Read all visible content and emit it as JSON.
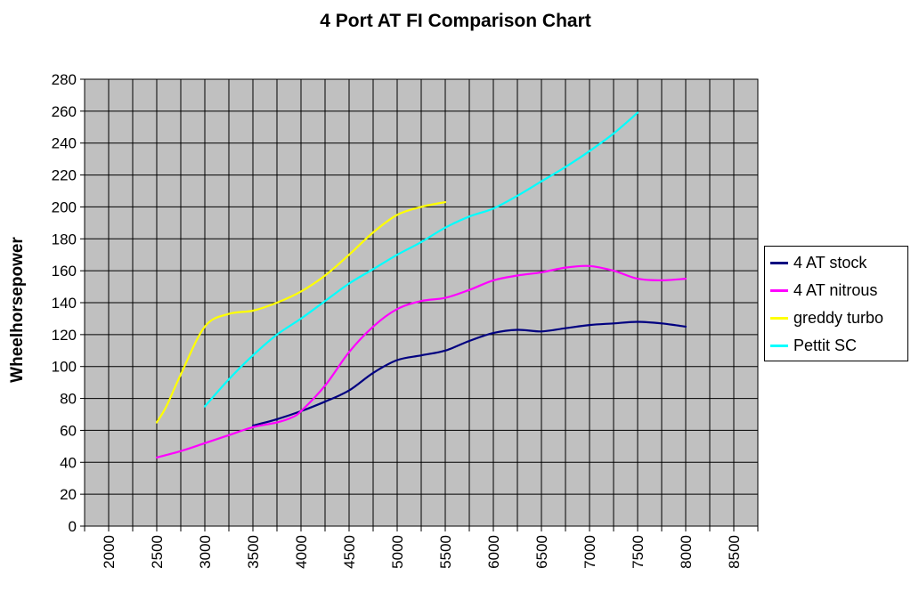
{
  "chart_data": {
    "type": "line",
    "title": "4 Port AT FI Comparison Chart",
    "xlabel": "",
    "ylabel": "Wheelhorsepower",
    "xlim": [
      1750,
      8750
    ],
    "ylim": [
      0,
      280
    ],
    "x_ticks": [
      2000,
      2500,
      3000,
      3500,
      4000,
      4500,
      5000,
      5500,
      6000,
      6500,
      7000,
      7500,
      8000,
      8500
    ],
    "y_ticks": [
      0,
      20,
      40,
      60,
      80,
      100,
      120,
      140,
      160,
      180,
      200,
      220,
      240,
      260,
      280
    ],
    "grid": true,
    "legend_position": "right",
    "series": [
      {
        "name": "4 AT stock",
        "color": "#000080",
        "points": [
          [
            3500,
            63
          ],
          [
            3750,
            67
          ],
          [
            4000,
            72
          ],
          [
            4250,
            78
          ],
          [
            4500,
            85
          ],
          [
            4750,
            96
          ],
          [
            5000,
            104
          ],
          [
            5250,
            107
          ],
          [
            5500,
            110
          ],
          [
            5750,
            116
          ],
          [
            6000,
            121
          ],
          [
            6250,
            123
          ],
          [
            6500,
            122
          ],
          [
            6750,
            124
          ],
          [
            7000,
            126
          ],
          [
            7250,
            127
          ],
          [
            7500,
            128
          ],
          [
            7750,
            127
          ],
          [
            8000,
            125
          ]
        ]
      },
      {
        "name": "4 AT nitrous",
        "color": "#ff00ff",
        "points": [
          [
            2500,
            43
          ],
          [
            2750,
            47
          ],
          [
            3000,
            52
          ],
          [
            3250,
            57
          ],
          [
            3500,
            62
          ],
          [
            3750,
            65
          ],
          [
            3900,
            68
          ],
          [
            4000,
            72
          ],
          [
            4250,
            88
          ],
          [
            4500,
            109
          ],
          [
            4750,
            125
          ],
          [
            5000,
            136
          ],
          [
            5250,
            141
          ],
          [
            5500,
            143
          ],
          [
            5750,
            148
          ],
          [
            6000,
            154
          ],
          [
            6250,
            157
          ],
          [
            6500,
            159
          ],
          [
            6750,
            162
          ],
          [
            7000,
            163
          ],
          [
            7250,
            160
          ],
          [
            7500,
            155
          ],
          [
            7750,
            154
          ],
          [
            8000,
            155
          ]
        ]
      },
      {
        "name": "greddy turbo",
        "color": "#ffff00",
        "points": [
          [
            2500,
            65
          ],
          [
            2600,
            75
          ],
          [
            2750,
            95
          ],
          [
            3000,
            125
          ],
          [
            3250,
            133
          ],
          [
            3500,
            135
          ],
          [
            3750,
            140
          ],
          [
            4000,
            147
          ],
          [
            4250,
            157
          ],
          [
            4500,
            170
          ],
          [
            4750,
            184
          ],
          [
            5000,
            195
          ],
          [
            5250,
            200
          ],
          [
            5500,
            203
          ]
        ]
      },
      {
        "name": "Pettit SC",
        "color": "#00ffff",
        "points": [
          [
            3000,
            75
          ],
          [
            3250,
            92
          ],
          [
            3500,
            107
          ],
          [
            3750,
            120
          ],
          [
            4000,
            130
          ],
          [
            4250,
            141
          ],
          [
            4500,
            152
          ],
          [
            4750,
            161
          ],
          [
            5000,
            170
          ],
          [
            5250,
            178
          ],
          [
            5500,
            187
          ],
          [
            5750,
            194
          ],
          [
            6000,
            199
          ],
          [
            6250,
            207
          ],
          [
            6500,
            216
          ],
          [
            6750,
            225
          ],
          [
            7000,
            235
          ],
          [
            7250,
            246
          ],
          [
            7500,
            259
          ]
        ]
      }
    ]
  },
  "legend": {
    "items": [
      {
        "label": "4 AT stock",
        "color": "#000080"
      },
      {
        "label": "4 AT nitrous",
        "color": "#ff00ff"
      },
      {
        "label": "greddy turbo",
        "color": "#ffff00"
      },
      {
        "label": "Pettit SC",
        "color": "#00ffff"
      }
    ]
  }
}
